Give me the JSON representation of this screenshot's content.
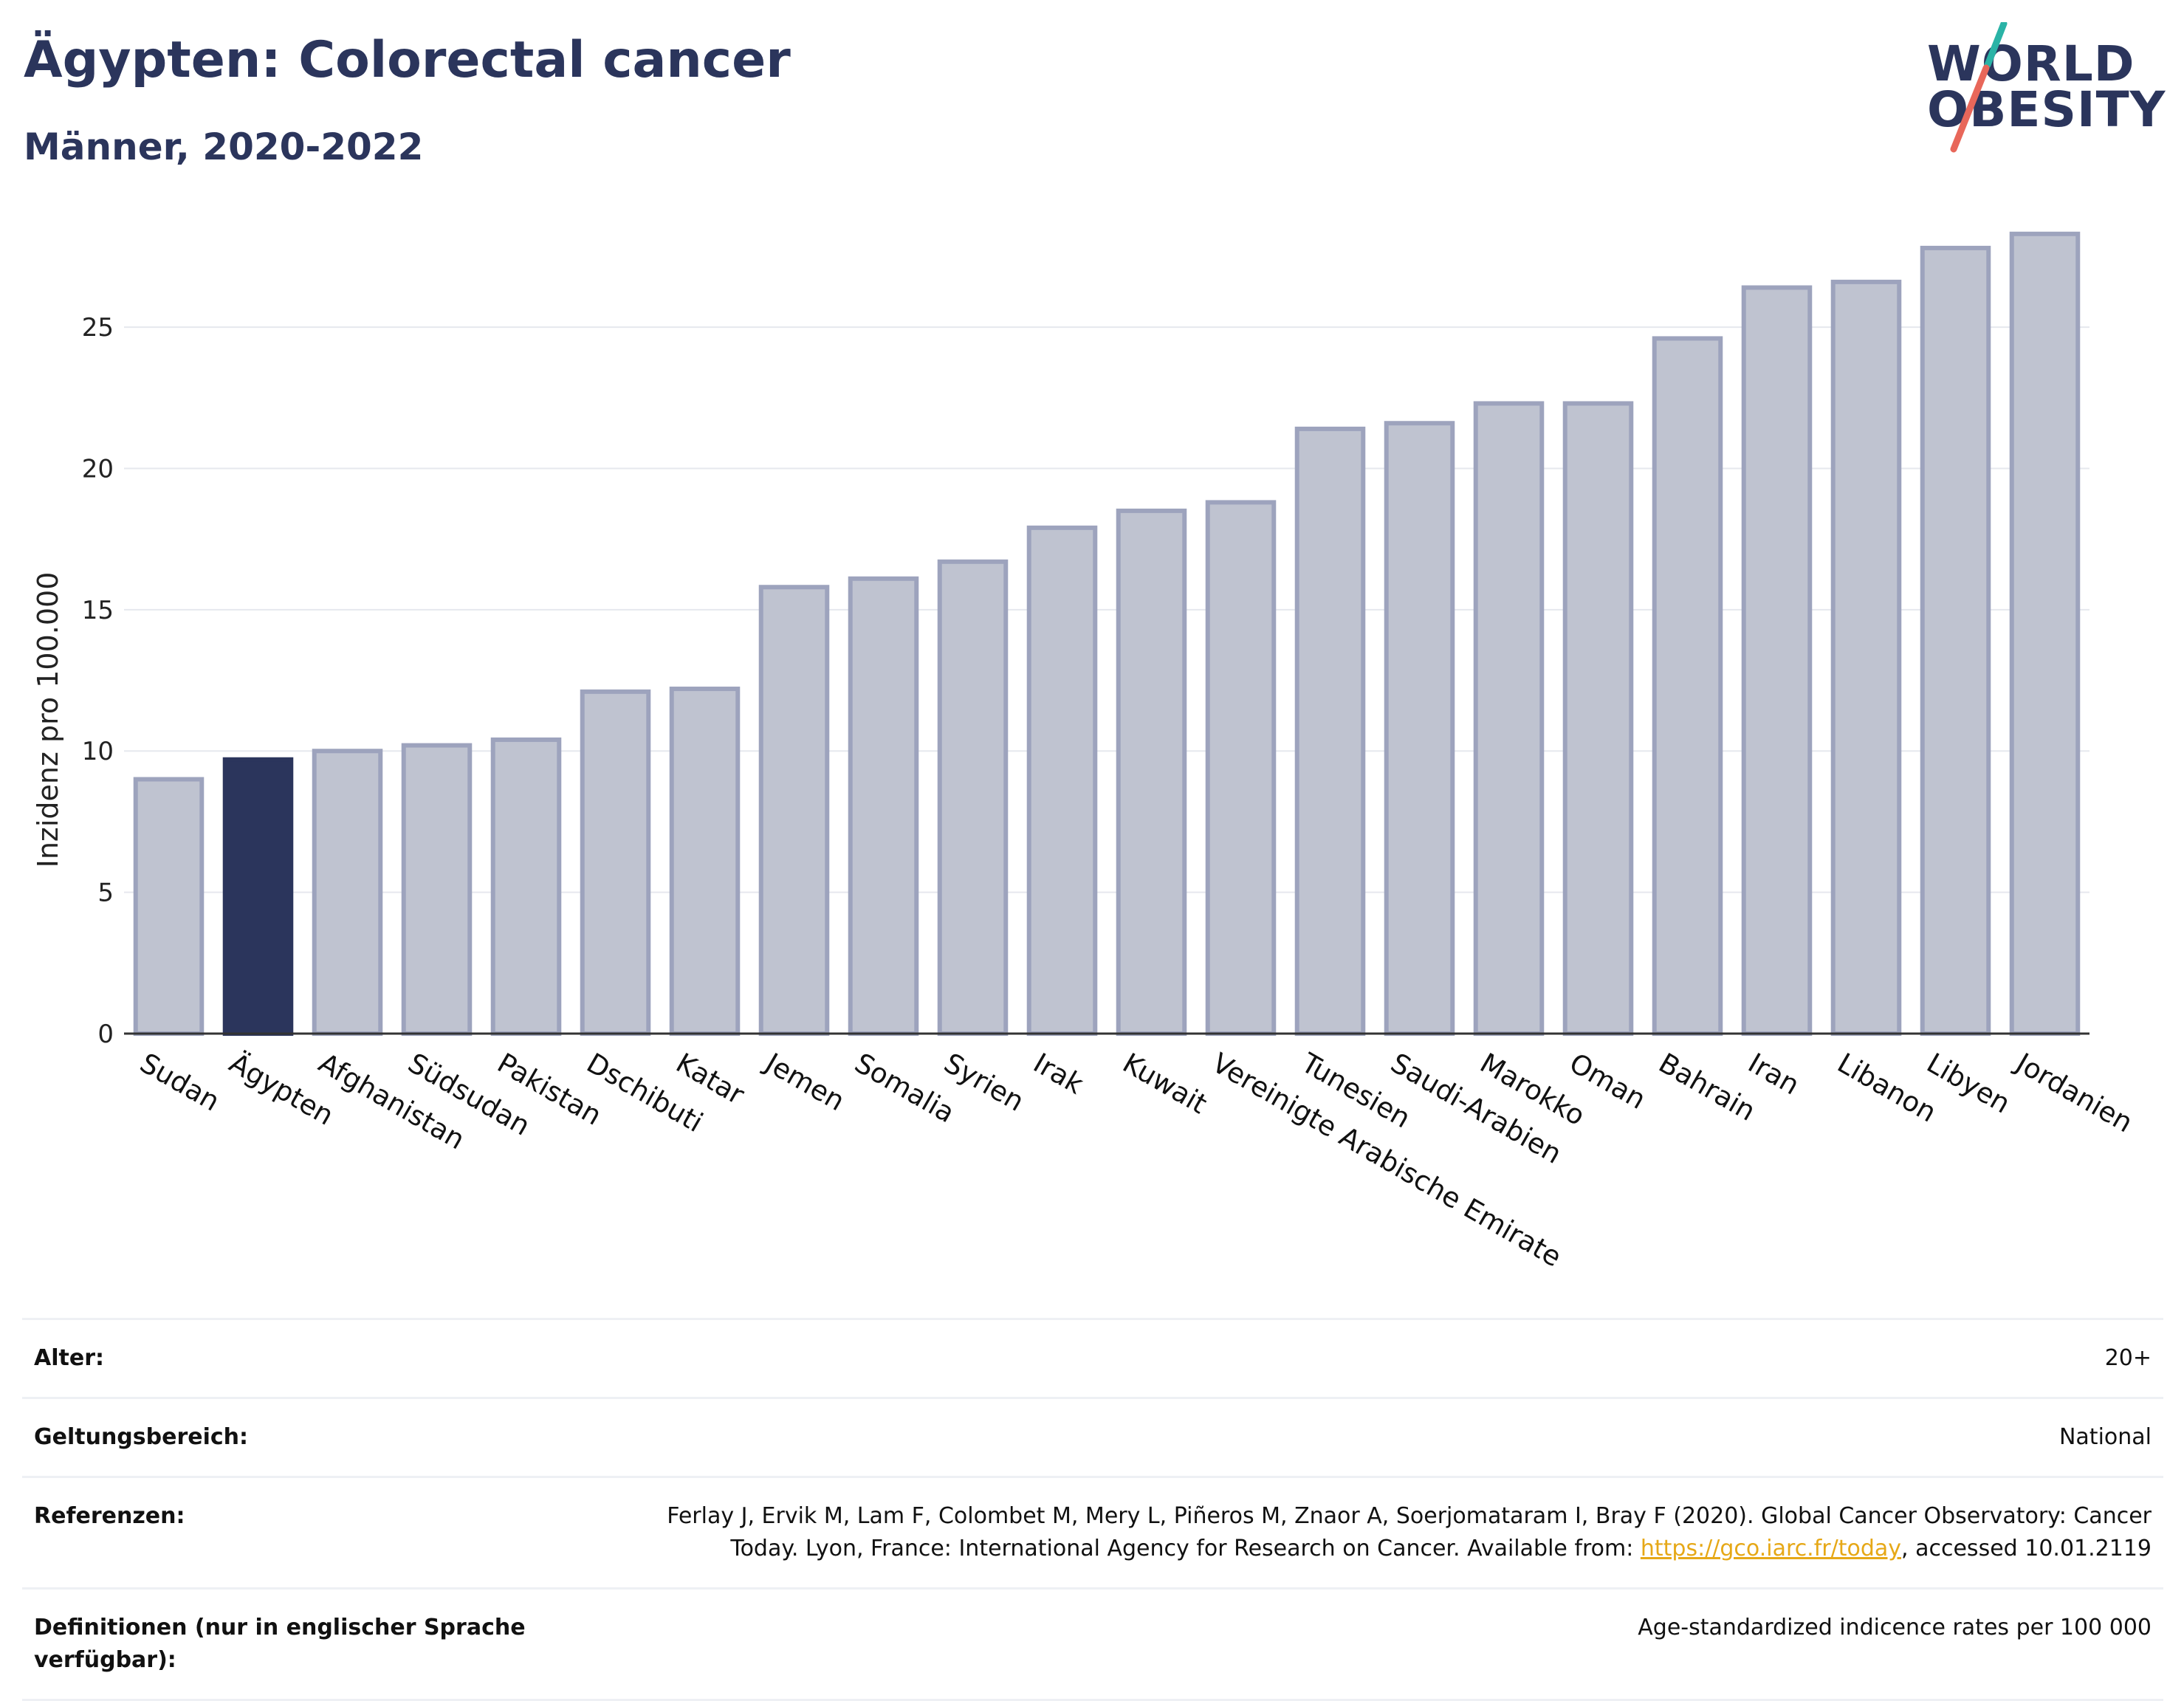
{
  "header": {
    "title": "Ägypten: Colorectal cancer",
    "subtitle": "Männer, 2020-2022"
  },
  "logo": {
    "line1": "WORLD",
    "line2": "OBESITY",
    "accent_colors": [
      "#2ab3a6",
      "#e8675a"
    ]
  },
  "colors": {
    "highlight": "#2b355c",
    "bar_fill": "#bfc3d0",
    "bar_stroke": "#9da3bd",
    "grid": "#e6e8ee",
    "link": "#e6a817"
  },
  "chart_data": {
    "type": "bar",
    "title": "Ägypten: Colorectal cancer",
    "subtitle": "Männer, 2020-2022",
    "ylabel": "Inzidenz pro 100.000",
    "xlabel": "",
    "ylim": [
      0,
      29
    ],
    "yticks": [
      0,
      5,
      10,
      15,
      20,
      25
    ],
    "grid": true,
    "highlight_category": "Ägypten",
    "categories": [
      "Sudan",
      "Ägypten",
      "Afghanistan",
      "Südsudan",
      "Pakistan",
      "Dschibuti",
      "Katar",
      "Jemen",
      "Somalia",
      "Syrien",
      "Irak",
      "Kuwait",
      "Vereinigte Arabische Emirate",
      "Tunesien",
      "Saudi-Arabien",
      "Marokko",
      "Oman",
      "Bahrain",
      "Iran",
      "Libanon",
      "Libyen",
      "Jordanien"
    ],
    "values": [
      9.0,
      9.7,
      10.0,
      10.2,
      10.4,
      12.1,
      12.2,
      15.8,
      16.1,
      16.7,
      17.9,
      18.5,
      18.8,
      21.4,
      21.6,
      22.3,
      22.3,
      24.6,
      26.4,
      26.6,
      27.8,
      28.3
    ]
  },
  "info": {
    "rows": [
      {
        "key": "Alter:",
        "value": "20+"
      },
      {
        "key": "Geltungsbereich:",
        "value": "National"
      },
      {
        "key": "Referenzen:",
        "value_pre": "Ferlay J, Ervik M, Lam F, Colombet M, Mery L, Piñeros M, Znaor A, Soerjomataram I, Bray F (2020). Global Cancer Observatory: Cancer Today. Lyon, France: International Agency for Research on Cancer. Available from: ",
        "link": "https://gco.iarc.fr/today",
        "value_post": ", accessed 10.01.2119"
      },
      {
        "key": "Definitionen (nur in englischer Sprache verfügbar):",
        "value": "Age-standardized indicence rates per 100 000"
      }
    ]
  }
}
